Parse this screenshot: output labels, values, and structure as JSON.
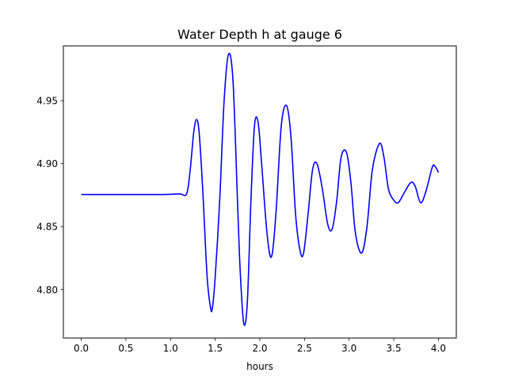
{
  "chart_data": {
    "type": "line",
    "title": "Water Depth h at gauge 6",
    "xlabel": "hours",
    "ylabel": "",
    "xlim": [
      -0.2,
      4.2
    ],
    "ylim": [
      4.7615,
      4.9935
    ],
    "xticks": [
      0.0,
      0.5,
      1.0,
      1.5,
      2.0,
      2.5,
      3.0,
      3.5,
      4.0
    ],
    "xtick_labels": [
      "0.0",
      "0.5",
      "1.0",
      "1.5",
      "2.0",
      "2.5",
      "3.0",
      "3.5",
      "4.0"
    ],
    "yticks": [
      4.8,
      4.85,
      4.9,
      4.95
    ],
    "ytick_labels": [
      "4.80",
      "4.85",
      "4.90",
      "4.95"
    ],
    "grid": false,
    "series": [
      {
        "color": "#0000ff",
        "x": [
          0.0,
          0.3,
          0.6,
          0.9,
          1.1,
          1.18,
          1.22,
          1.26,
          1.29,
          1.32,
          1.36,
          1.41,
          1.45,
          1.47,
          1.5,
          1.55,
          1.6,
          1.65,
          1.7,
          1.75,
          1.78,
          1.82,
          1.86,
          1.9,
          1.94,
          1.98,
          2.02,
          2.08,
          2.13,
          2.18,
          2.24,
          2.3,
          2.35,
          2.4,
          2.45,
          2.49,
          2.54,
          2.59,
          2.64,
          2.7,
          2.76,
          2.81,
          2.86,
          2.91,
          2.97,
          3.02,
          3.07,
          3.14,
          3.2,
          3.26,
          3.34,
          3.39,
          3.44,
          3.5,
          3.55,
          3.61,
          3.69,
          3.74,
          3.8,
          3.86,
          3.93,
          3.96,
          4.0
        ],
        "y": [
          4.8755,
          4.8755,
          4.8755,
          4.8755,
          4.876,
          4.876,
          4.895,
          4.925,
          4.935,
          4.925,
          4.88,
          4.81,
          4.785,
          4.786,
          4.81,
          4.87,
          4.95,
          4.987,
          4.965,
          4.87,
          4.815,
          4.773,
          4.79,
          4.87,
          4.93,
          4.933,
          4.9,
          4.845,
          4.826,
          4.86,
          4.93,
          4.946,
          4.92,
          4.86,
          4.831,
          4.829,
          4.86,
          4.895,
          4.9,
          4.88,
          4.852,
          4.848,
          4.87,
          4.905,
          4.909,
          4.885,
          4.845,
          4.829,
          4.85,
          4.895,
          4.916,
          4.905,
          4.88,
          4.871,
          4.869,
          4.876,
          4.885,
          4.882,
          4.869,
          4.878,
          4.897,
          4.898,
          4.893
        ]
      }
    ]
  }
}
